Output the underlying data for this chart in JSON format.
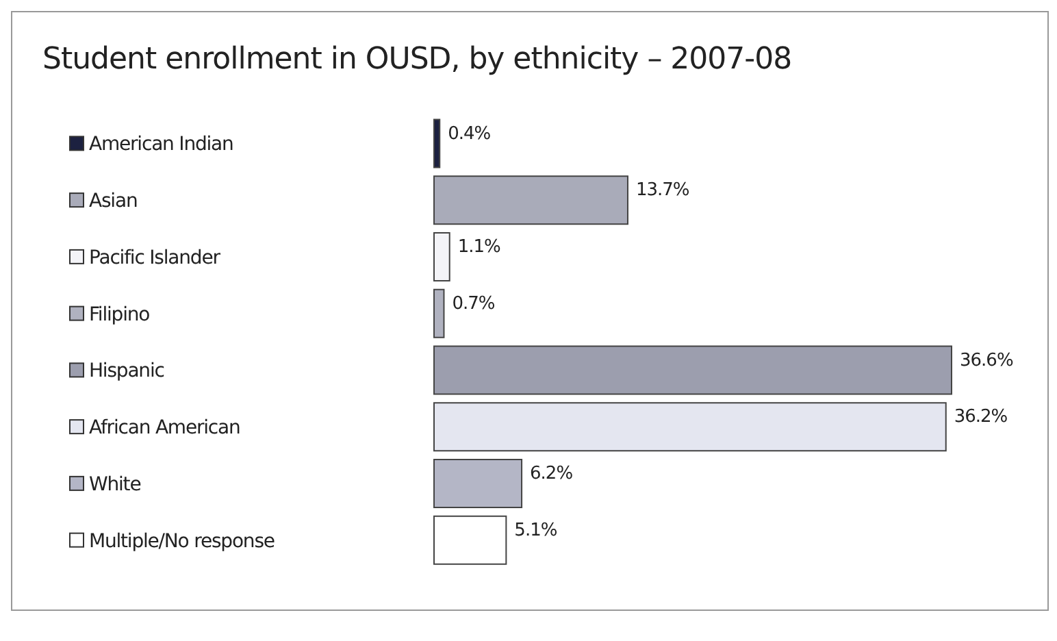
{
  "chart_data": {
    "type": "bar",
    "orientation": "horizontal",
    "title": "Student enrollment in OUSD, by ethnicity – 2007-08",
    "categories": [
      "American Indian",
      "Asian",
      "Pacific Islander",
      "Filipino",
      "Hispanic",
      "African American",
      "White",
      "Multiple/No response"
    ],
    "values": [
      0.4,
      13.7,
      1.1,
      0.7,
      36.6,
      36.2,
      6.2,
      5.1
    ],
    "value_labels": [
      "0.4%",
      "13.7%",
      "1.1%",
      "0.7%",
      "36.6%",
      "36.2%",
      "6.2%",
      "5.1%"
    ],
    "colors": [
      "#1c2140",
      "#a9abb9",
      "#f4f4f8",
      "#b0b2c0",
      "#9c9eae",
      "#e4e6f0",
      "#b4b6c6",
      "#ffffff"
    ]
  }
}
